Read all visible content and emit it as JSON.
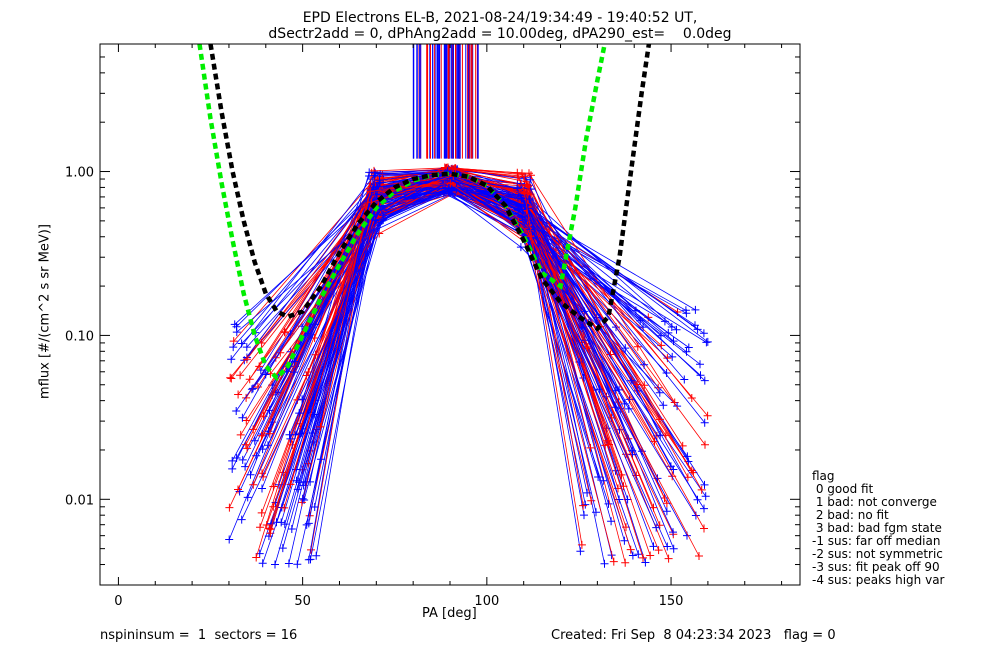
{
  "title_line1": "EPD Electrons EL-B, 2021-08-24/19:34:49 - 19:40:52 UT,",
  "title_line2": "dSectr2add = 0, dPhAng2add = 10.00deg, dPA290_est=    0.0deg",
  "footer_left": "nspininsum =  1  sectors = 16",
  "footer_right": "Created: Fri Sep  8 04:23:34 2023   flag = 0",
  "legend": {
    "title": "flag",
    "entries": [
      " 0 good fit",
      " 1 bad: not converge",
      " 2 bad: no fit",
      " 3 bad: bad fgm state",
      "-1 sus: far off median",
      "-2 sus: not symmetric",
      "-3 sus: fit peak off 90",
      "-4 sus: peaks high var"
    ]
  },
  "chart_data": {
    "type": "line",
    "title": "EPD Electrons EL-B, 2021-08-24/19:34:49 - 19:40:52 UT,",
    "subtitle": "dSectr2add = 0, dPhAng2add = 10.00deg, dPA290_est=    0.0deg",
    "xlabel": "PA [deg]",
    "ylabel": "mflux [#/(cm^2 s sr MeV)]",
    "xlim": [
      -5,
      185
    ],
    "ylim": [
      0.003,
      6
    ],
    "yscale": "log",
    "xticks": [
      0,
      50,
      100,
      150
    ],
    "yticks": [
      0.01,
      0.1,
      1.0
    ],
    "ytick_labels": [
      "0.01",
      "0.10",
      "1.00"
    ],
    "colors": {
      "series_a": "#0000ff",
      "series_b": "#ff0000",
      "fit_green": "#00ee00",
      "fit_black": "#000000"
    },
    "fit_curves": [
      {
        "color": "#00ee00",
        "x": [
          22,
          25,
          28,
          31,
          34,
          37,
          40,
          43,
          46,
          50,
          55,
          60,
          65,
          70,
          75,
          80,
          85,
          90,
          95,
          100,
          105,
          110,
          115,
          120,
          124,
          127,
          130,
          132
        ],
        "y": [
          6.0,
          2.1,
          0.85,
          0.38,
          0.18,
          0.1,
          0.065,
          0.055,
          0.065,
          0.1,
          0.17,
          0.27,
          0.42,
          0.6,
          0.76,
          0.88,
          0.95,
          0.97,
          0.93,
          0.82,
          0.62,
          0.4,
          0.24,
          0.2,
          0.6,
          1.6,
          3.6,
          6.0
        ]
      },
      {
        "color": "#000000",
        "x": [
          25,
          28,
          31,
          34,
          37,
          40,
          43,
          46,
          50,
          55,
          60,
          65,
          70,
          75,
          80,
          85,
          90,
          95,
          100,
          105,
          110,
          115,
          120,
          125,
          130,
          133,
          136,
          139,
          142,
          144
        ],
        "y": [
          6.0,
          2.3,
          1.0,
          0.5,
          0.28,
          0.18,
          0.14,
          0.13,
          0.14,
          0.2,
          0.32,
          0.48,
          0.65,
          0.8,
          0.9,
          0.95,
          0.97,
          0.93,
          0.82,
          0.62,
          0.38,
          0.22,
          0.16,
          0.13,
          0.11,
          0.13,
          0.3,
          0.95,
          3.0,
          6.0
        ]
      }
    ],
    "bundle": {
      "description_free": true,
      "peak_x": 90,
      "peak_y": 0.92,
      "left_x": [
        30,
        55
      ],
      "right_x": [
        125,
        160
      ],
      "low_y": [
        0.004,
        0.2
      ]
    },
    "top_ticks_x": [
      80,
      98
    ]
  }
}
